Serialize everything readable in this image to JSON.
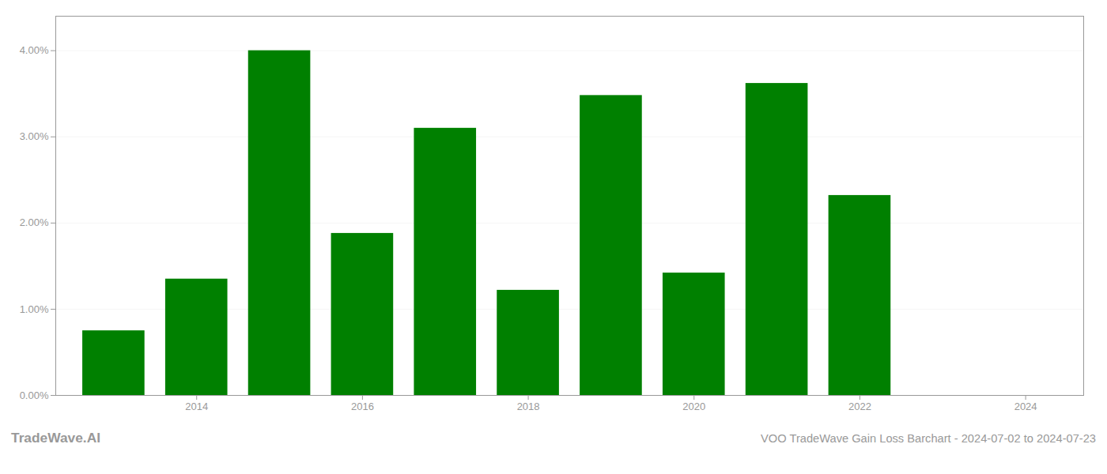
{
  "chart_data": {
    "type": "bar",
    "title": "TradeWave.AI",
    "subtitle": "VOO TradeWave Gain Loss Barchart - 2024-07-02 to 2024-07-23",
    "x": [
      2013,
      2014,
      2015,
      2016,
      2017,
      2018,
      2019,
      2020,
      2021,
      2022
    ],
    "values": [
      0.0075,
      0.0135,
      0.04,
      0.0188,
      0.031,
      0.0122,
      0.0348,
      0.0142,
      0.0362,
      0.0232
    ],
    "color": "#008000",
    "xlim": [
      2012.3,
      2024.7
    ],
    "xticks": [
      2014,
      2016,
      2018,
      2020,
      2022,
      2024
    ],
    "ylim": [
      0.0,
      0.044
    ],
    "yticks": [
      {
        "value": 0.0,
        "label": "0.00%"
      },
      {
        "value": 0.01,
        "label": "1.00%"
      },
      {
        "value": 0.02,
        "label": "2.00%"
      },
      {
        "value": 0.03,
        "label": "3.00%"
      },
      {
        "value": 0.04,
        "label": "4.00%"
      }
    ],
    "grid": true
  }
}
